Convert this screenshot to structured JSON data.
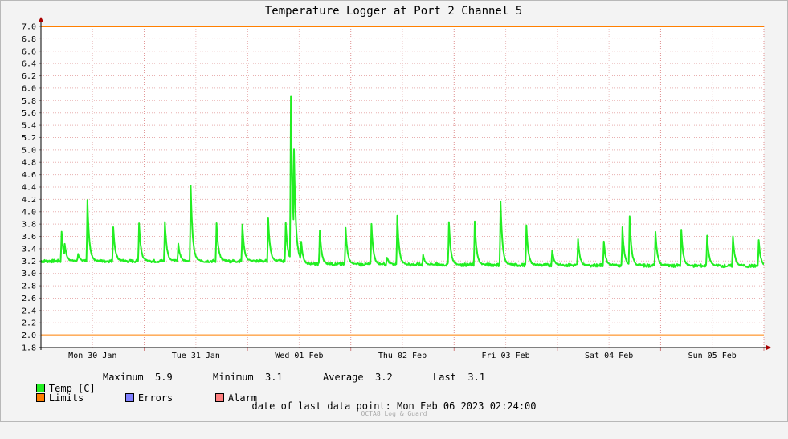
{
  "chart_data": {
    "type": "line",
    "title": "Temperature Logger at Port 2 Channel 5",
    "ylim": [
      1.8,
      7.0
    ],
    "yticks": [
      "7.0",
      "6.8",
      "6.6",
      "6.4",
      "6.2",
      "6.0",
      "5.8",
      "5.6",
      "5.4",
      "5.2",
      "5.0",
      "4.8",
      "4.6",
      "4.4",
      "4.2",
      "4.0",
      "3.8",
      "3.6",
      "3.4",
      "3.2",
      "3.0",
      "2.8",
      "2.6",
      "2.4",
      "2.2",
      "2.0",
      "1.8"
    ],
    "xlim": [
      0,
      7.0
    ],
    "xticks": [
      {
        "label": "Mon 30 Jan",
        "x": 0.5
      },
      {
        "label": "Tue 31 Jan",
        "x": 1.5
      },
      {
        "label": "Wed 01 Feb",
        "x": 2.5
      },
      {
        "label": "Thu 02 Feb",
        "x": 3.5
      },
      {
        "label": "Fri 03 Feb",
        "x": 4.5
      },
      {
        "label": "Sat 04 Feb",
        "x": 5.5
      },
      {
        "label": "Sun 05 Feb",
        "x": 6.5
      }
    ],
    "grid": true,
    "limits": [
      7.0,
      2.0
    ],
    "series": [
      {
        "name": "Temp [C]",
        "color": "#22ee22",
        "baseline": [
          [
            0,
            3.2
          ],
          [
            2.5,
            3.2
          ],
          [
            2.55,
            3.15
          ],
          [
            7.0,
            3.12
          ]
        ],
        "points": [
          [
            0.2,
            3.68
          ],
          [
            0.23,
            3.48
          ],
          [
            0.36,
            3.32
          ],
          [
            0.45,
            4.18
          ],
          [
            0.7,
            3.76
          ],
          [
            0.95,
            3.82
          ],
          [
            1.2,
            3.84
          ],
          [
            1.33,
            3.48
          ],
          [
            1.45,
            4.43
          ],
          [
            1.7,
            3.82
          ],
          [
            1.95,
            3.8
          ],
          [
            2.2,
            3.9
          ],
          [
            2.37,
            3.82
          ],
          [
            2.42,
            5.88
          ],
          [
            2.45,
            5.0
          ],
          [
            2.52,
            3.52
          ],
          [
            2.7,
            3.7
          ],
          [
            2.95,
            3.74
          ],
          [
            3.2,
            3.8
          ],
          [
            3.35,
            3.26
          ],
          [
            3.45,
            3.94
          ],
          [
            3.7,
            3.3
          ],
          [
            3.95,
            3.84
          ],
          [
            4.2,
            3.84
          ],
          [
            4.45,
            4.17
          ],
          [
            4.7,
            3.78
          ],
          [
            4.95,
            3.38
          ],
          [
            5.2,
            3.55
          ],
          [
            5.45,
            3.52
          ],
          [
            5.63,
            3.74
          ],
          [
            5.7,
            3.92
          ],
          [
            5.95,
            3.68
          ],
          [
            6.2,
            3.7
          ],
          [
            6.45,
            3.62
          ],
          [
            6.7,
            3.6
          ],
          [
            6.95,
            3.54
          ]
        ]
      }
    ]
  },
  "legend": {
    "temp_label": "Temp [C]",
    "max_label": "Maximum",
    "max_value": "5.9",
    "min_label": "Minimum",
    "min_value": "3.1",
    "avg_label": "Average",
    "avg_value": "3.2",
    "last_label": "Last",
    "last_value": "3.1",
    "limits_label": "Limits",
    "errors_label": "Errors",
    "alarm_label": "Alarm",
    "temp_color": "#22ee22",
    "limits_color": "#ff7f00",
    "errors_color": "#7f7fff",
    "alarm_color": "#ff7f7f"
  },
  "footer": {
    "last_point_label": "date of last data point:",
    "last_point_value": "Mon Feb 06 2023 02:24:00",
    "credit": "OCTA8 Log & Guard"
  }
}
